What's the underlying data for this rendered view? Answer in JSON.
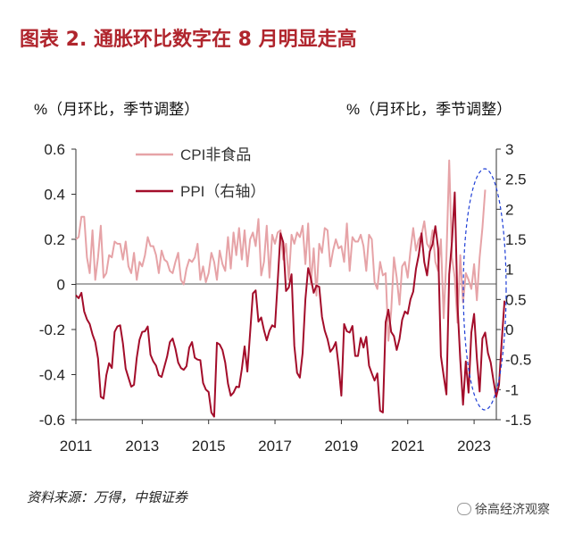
{
  "title": "图表 2. 通胀环比数字在 8 月明显走高",
  "source": "资料来源：万得，中银证券",
  "watermark": "徐高经济观察",
  "watermark_icon": "wechat-icon",
  "colors": {
    "title": "#b0252d",
    "cpi": "#e6a3a7",
    "ppi": "#a30d2a",
    "highlight": "#1f3fd6"
  },
  "chart_data": {
    "type": "line",
    "left_axis_label": "%（月环比，季节调整）",
    "right_axis_label": "%（月环比，季节调整）",
    "left_ylim": [
      -0.6,
      0.6
    ],
    "left_ticks": [
      0.6,
      0.4,
      0.2,
      0,
      -0.2,
      -0.4,
      -0.6
    ],
    "left_tick_labels": [
      "0.6",
      "0.4",
      "0.2",
      "0",
      "-0.2",
      "-0.4",
      "-0.6"
    ],
    "right_ylim": [
      -1.5,
      3
    ],
    "right_ticks": [
      3,
      2.5,
      2,
      1.5,
      1,
      0.5,
      0,
      -0.5,
      -1,
      -1.5
    ],
    "right_tick_labels": [
      "3",
      "2.5",
      "2",
      "1.5",
      "1",
      "0.5",
      "0",
      "-0.5",
      "-1",
      "-1.5"
    ],
    "xlim": [
      2011.0,
      2023.67
    ],
    "x_ticks": [
      2011,
      2013,
      2015,
      2017,
      2019,
      2021,
      2023
    ],
    "x_tick_labels": [
      "2011",
      "2013",
      "2015",
      "2017",
      "2019",
      "2021",
      "2023"
    ],
    "series": [
      {
        "name": "CPI非食品",
        "axis": "left",
        "start": 2011.0,
        "values": [
          0.2,
          0.21,
          0.3,
          0.3,
          0.12,
          0.05,
          0.24,
          0.02,
          0.12,
          0.26,
          0.03,
          0.05,
          0.13,
          0.12,
          0.19,
          0.18,
          0.18,
          0.11,
          0.19,
          0.08,
          0.05,
          0.14,
          0.02,
          0.1,
          0.08,
          0.13,
          0.21,
          0.17,
          0.17,
          0.13,
          0.05,
          0.15,
          0.11,
          0.1,
          0.06,
          0.05,
          0.1,
          0.14,
          0.02,
          0.0,
          0.07,
          0.11,
          0.1,
          0.12,
          0.18,
          0.02,
          0.08,
          0.01,
          0.05,
          0.14,
          0.1,
          0.02,
          0.15,
          0.09,
          0.06,
          0.21,
          0.07,
          0.23,
          0.13,
          0.25,
          0.11,
          0.24,
          0.08,
          0.2,
          0.23,
          0.17,
          0.29,
          0.04,
          0.1,
          0.26,
          0.03,
          0.22,
          0.18,
          0.23,
          0.24,
          0.11,
          0.18,
          0.02,
          0.22,
          0.18,
          0.23,
          0.21,
          0.26,
          0.09,
          0.27,
          0.0,
          0.16,
          -0.05,
          0.18,
          0.14,
          0.25,
          0.24,
          0.08,
          0.15,
          0.2,
          0.16,
          0.17,
          0.1,
          0.27,
          0.06,
          0.21,
          0.19,
          0.19,
          0.22,
          0.17,
          0.06,
          0.22,
          0.2,
          0.01,
          -0.02,
          0.1,
          0.04,
          0.05,
          -0.25,
          -0.12,
          0.12,
          0.03,
          -0.09,
          0.08,
          0.1,
          0.03,
          0.15,
          0.25,
          0.15,
          0.2,
          0.22,
          0.28,
          0.18,
          0.16,
          0.24,
          0.1,
          0.06,
          0.2,
          -0.15,
          0.12,
          0.55,
          0.12,
          0.03,
          -0.17,
          0.13,
          -0.08,
          0.05,
          0.02,
          -0.02,
          0.09,
          -0.07,
          0.12,
          0.25,
          0.42
        ]
      },
      {
        "name": "PPI（右轴）",
        "axis": "right",
        "start": 2011.0,
        "values": [
          0.57,
          0.52,
          0.61,
          0.3,
          0.17,
          0.09,
          -0.08,
          -0.21,
          -0.48,
          -1.12,
          -1.15,
          -0.76,
          -0.56,
          -0.64,
          -0.04,
          0.05,
          0.07,
          -0.23,
          -0.65,
          -0.8,
          -0.95,
          -0.92,
          -0.47,
          -0.17,
          -0.04,
          -0.03,
          0.05,
          -0.42,
          -0.53,
          -0.6,
          -0.76,
          -0.79,
          -0.62,
          -0.45,
          -0.21,
          -0.15,
          -0.32,
          -0.55,
          -0.64,
          -0.67,
          -0.61,
          -0.3,
          -0.21,
          -0.47,
          -0.5,
          -0.51,
          -0.89,
          -1.0,
          -1.04,
          -1.38,
          -1.45,
          -0.22,
          -0.25,
          -0.34,
          -0.55,
          -0.9,
          -1.1,
          -1.05,
          -0.95,
          -0.96,
          -0.66,
          -0.28,
          -0.7,
          -0.05,
          0.6,
          0.65,
          0.13,
          0.2,
          -0.01,
          -0.18,
          -0.02,
          0.07,
          0.04,
          0.8,
          1.6,
          1.45,
          0.64,
          0.7,
          0.92,
          -0.27,
          -0.72,
          -0.8,
          -0.39,
          0.5,
          1.02,
          0.85,
          0.61,
          0.73,
          0.71,
          0.21,
          -0.02,
          -0.16,
          -0.37,
          -0.31,
          -0.21,
          -0.6,
          -1.1,
          0.09,
          -0.03,
          -0.05,
          0.06,
          -0.44,
          -0.44,
          -0.14,
          -0.3,
          -0.12,
          -0.6,
          -0.73,
          -0.85,
          -0.73,
          -1.35,
          -1.38,
          0.12,
          0.33,
          -0.04,
          -0.11,
          -0.34,
          -0.16,
          0.16,
          0.3,
          0.26,
          0.5,
          0.63,
          1.01,
          1.24,
          1.6,
          1.12,
          0.9,
          1.3,
          1.42,
          1.72,
          1.35,
          -0.44,
          -0.77,
          -1.08,
          0.92,
          1.46,
          2.28,
          0.41,
          -0.5,
          -1.25,
          -0.53,
          -1.05,
          -0.05,
          0.26,
          -0.48,
          -1.03,
          -0.15,
          -0.05,
          -0.39,
          -0.55,
          -0.85,
          -1.12,
          -0.92,
          -0.18,
          0.48
        ]
      }
    ],
    "legend": [
      "CPI非食品",
      "PPI（右轴）"
    ],
    "legend_location": "top-left",
    "annotation": "dashed blue ellipse highlighting the latest months of 2023"
  }
}
